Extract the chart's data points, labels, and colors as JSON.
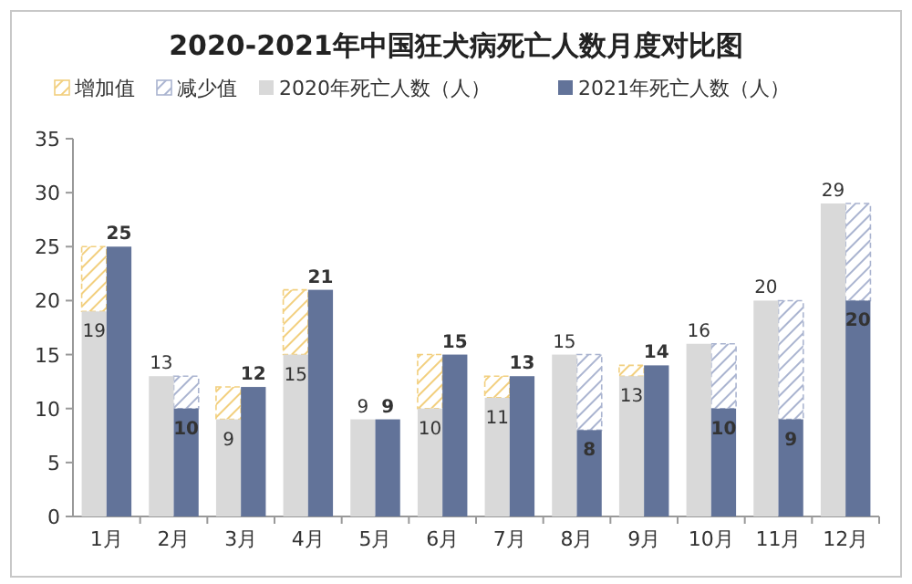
{
  "chart_data": {
    "type": "bar",
    "title": "2020-2021年中国狂犬病死亡人数月度对比图",
    "categories": [
      "1月",
      "2月",
      "3月",
      "4月",
      "5月",
      "6月",
      "7月",
      "8月",
      "9月",
      "10月",
      "11月",
      "12月"
    ],
    "series": [
      {
        "name": "增加值",
        "color": "#f2cf7e",
        "values": [
          6,
          null,
          3,
          6,
          null,
          5,
          2,
          null,
          1,
          null,
          null,
          null
        ],
        "base": [
          19,
          null,
          9,
          15,
          null,
          10,
          11,
          null,
          13,
          null,
          null,
          null
        ]
      },
      {
        "name": "减少值",
        "color": "#aab4d0",
        "values": [
          null,
          3,
          null,
          null,
          null,
          null,
          null,
          7,
          null,
          6,
          11,
          9
        ],
        "base": [
          null,
          10,
          null,
          null,
          null,
          null,
          null,
          8,
          null,
          10,
          9,
          20
        ]
      },
      {
        "name": "2020年死亡人数（人）",
        "color": "#d9d9d9",
        "values": [
          19,
          13,
          9,
          15,
          9,
          10,
          11,
          15,
          13,
          16,
          20,
          29
        ],
        "value_labels": [
          "19",
          "13",
          "9",
          "15",
          "9",
          "10",
          "11",
          "15",
          "13",
          "16",
          "20",
          "29"
        ]
      },
      {
        "name": "2021年死亡人数（人）",
        "color": "#627399",
        "values": [
          25,
          10,
          12,
          21,
          9,
          15,
          13,
          8,
          14,
          10,
          9,
          20
        ],
        "value_labels": [
          "25",
          "10",
          "12",
          "21",
          "9",
          "15",
          "13",
          "8",
          "14",
          "10",
          "9",
          "20"
        ]
      }
    ],
    "ylim": [
      0,
      35
    ],
    "yticks": [
      0,
      5,
      10,
      15,
      20,
      25,
      30,
      35
    ],
    "legend": "top",
    "grid": false
  }
}
